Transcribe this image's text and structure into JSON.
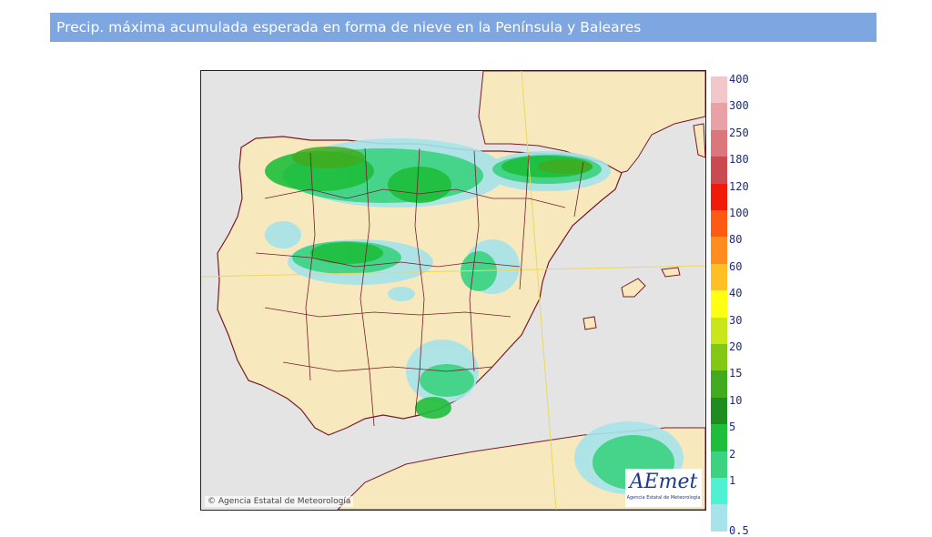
{
  "header": {
    "title": "Precip. máxima acumulada esperada en forma de nieve en la Península y Baleares"
  },
  "map": {
    "copyright": "© Agencia Estatal de Meteorología",
    "logo_text": "AEmet",
    "logo_subtitle": "Agencia Estatal de Meteorología",
    "colors": {
      "sea": "#e4e4e4",
      "land": "#f7e9bd",
      "borders": "#7a1a2a",
      "grid_lines": "#ecd85a"
    }
  },
  "legend": {
    "items": [
      {
        "label": "400",
        "color": "#f3c6cc"
      },
      {
        "label": "300",
        "color": "#e9a0a6"
      },
      {
        "label": "250",
        "color": "#d9777c"
      },
      {
        "label": "180",
        "color": "#c94a50"
      },
      {
        "label": "120",
        "color": "#ef1a0a"
      },
      {
        "label": "100",
        "color": "#ff5a14"
      },
      {
        "label": "80",
        "color": "#ff8c1e"
      },
      {
        "label": "60",
        "color": "#ffc025"
      },
      {
        "label": "40",
        "color": "#ffff14"
      },
      {
        "label": "30",
        "color": "#c8e61a"
      },
      {
        "label": "20",
        "color": "#82c814"
      },
      {
        "label": "15",
        "color": "#41aa1e"
      },
      {
        "label": "10",
        "color": "#1e8c1e"
      },
      {
        "label": "5",
        "color": "#1ebe3c"
      },
      {
        "label": "2",
        "color": "#3cd282"
      },
      {
        "label": "1",
        "color": "#50f0d2"
      },
      {
        "label": "0.5",
        "color": "#a6e3ea"
      }
    ]
  }
}
